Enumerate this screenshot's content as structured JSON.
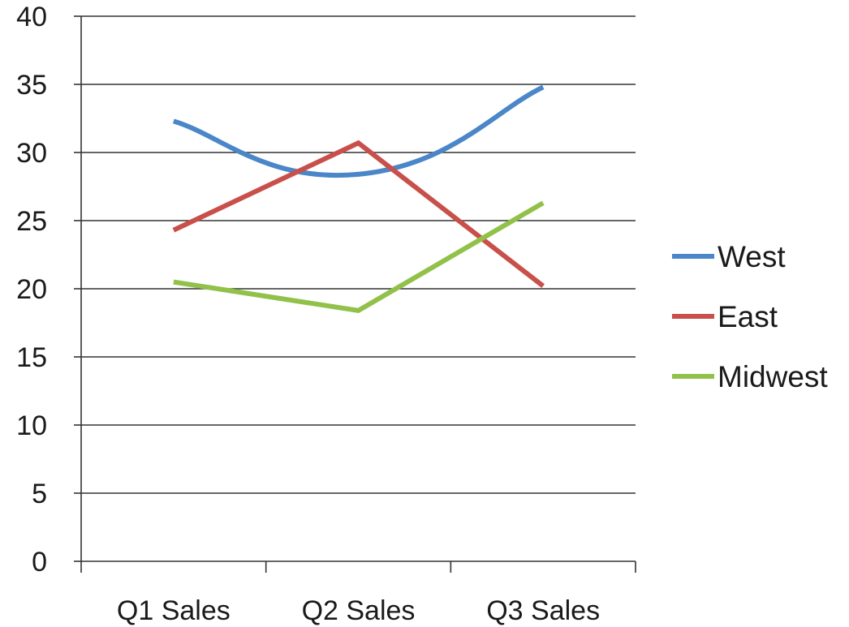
{
  "chart_data": {
    "type": "line",
    "title": "",
    "xlabel": "",
    "ylabel": "",
    "categories": [
      "Q1 Sales",
      "Q2 Sales",
      "Q3 Sales"
    ],
    "ylim": [
      0,
      40
    ],
    "yticks": [
      "0",
      "5",
      "10",
      "15",
      "20",
      "25",
      "30",
      "35",
      "40"
    ],
    "grid": true,
    "legend_position": "right",
    "series": [
      {
        "name": "West",
        "values": [
          32.3,
          28.4,
          34.8
        ],
        "color": "#4a86c8",
        "smooth": true
      },
      {
        "name": "East",
        "values": [
          24.3,
          30.7,
          20.2
        ],
        "color": "#c9504a",
        "smooth": false
      },
      {
        "name": "Midwest",
        "values": [
          20.5,
          18.4,
          26.3
        ],
        "color": "#92c14a",
        "smooth": false
      }
    ]
  }
}
